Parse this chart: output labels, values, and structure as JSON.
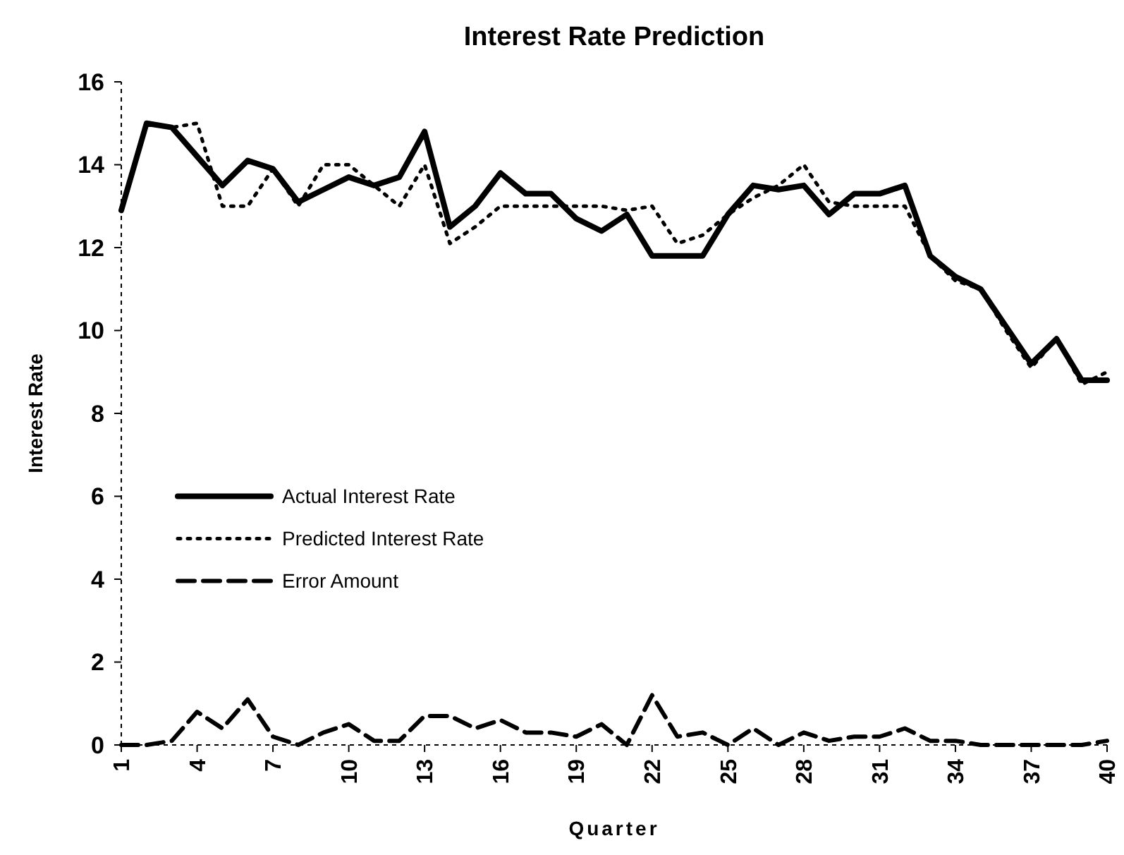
{
  "chart_data": {
    "type": "line",
    "title": "Interest Rate Prediction",
    "xlabel": "Quarter",
    "ylabel": "Interest Rate",
    "x": [
      1,
      2,
      3,
      4,
      5,
      6,
      7,
      8,
      9,
      10,
      11,
      12,
      13,
      14,
      15,
      16,
      17,
      18,
      19,
      20,
      21,
      22,
      23,
      24,
      25,
      26,
      27,
      28,
      29,
      30,
      31,
      32,
      33,
      34,
      35,
      36,
      37,
      38,
      39,
      40
    ],
    "xlim": [
      1,
      40
    ],
    "xticks": [
      1,
      4,
      7,
      10,
      13,
      16,
      19,
      22,
      25,
      28,
      31,
      34,
      37,
      40
    ],
    "ylim": [
      0,
      16
    ],
    "yticks": [
      0,
      2,
      4,
      6,
      8,
      10,
      12,
      14,
      16
    ],
    "grid": false,
    "legend": "left",
    "marker": "none",
    "series": [
      {
        "name": "Actual Interest Rate",
        "color": "#000000",
        "line_style": "solid",
        "values": [
          12.9,
          15.0,
          14.9,
          14.2,
          13.5,
          14.1,
          13.9,
          13.1,
          13.4,
          13.7,
          13.5,
          13.7,
          14.8,
          12.5,
          13.0,
          13.8,
          13.3,
          13.3,
          12.7,
          12.4,
          12.8,
          11.8,
          11.8,
          11.8,
          12.8,
          13.5,
          13.4,
          13.5,
          12.8,
          13.3,
          13.3,
          13.5,
          11.8,
          11.3,
          11.0,
          10.1,
          9.2,
          9.8,
          8.8,
          8.8
        ]
      },
      {
        "name": "Predicted Interest Rate",
        "color": "#000000",
        "line_style": "dotted",
        "values": [
          12.9,
          15.0,
          14.9,
          15.0,
          13.0,
          13.0,
          13.9,
          13.0,
          14.0,
          14.0,
          13.5,
          13.0,
          14.0,
          12.1,
          12.5,
          13.0,
          13.0,
          13.0,
          13.0,
          13.0,
          12.9,
          13.0,
          12.1,
          12.3,
          12.8,
          13.2,
          13.5,
          14.0,
          13.1,
          13.0,
          13.0,
          13.0,
          11.8,
          11.2,
          11.0,
          10.0,
          9.1,
          9.8,
          8.7,
          9.0
        ]
      },
      {
        "name": "Error Amount",
        "color": "#000000",
        "line_style": "dashed",
        "values": [
          0,
          0,
          0.1,
          0.8,
          0.4,
          1.1,
          0.2,
          0,
          0.3,
          0.5,
          0.1,
          0.1,
          0.7,
          0.7,
          0.4,
          0.6,
          0.3,
          0.3,
          0.2,
          0.5,
          0,
          1.2,
          0.2,
          0.3,
          0,
          0.4,
          0,
          0.3,
          0.1,
          0.2,
          0.2,
          0.4,
          0.1,
          0.1,
          0,
          0,
          0,
          0,
          0,
          0.1
        ]
      }
    ]
  }
}
